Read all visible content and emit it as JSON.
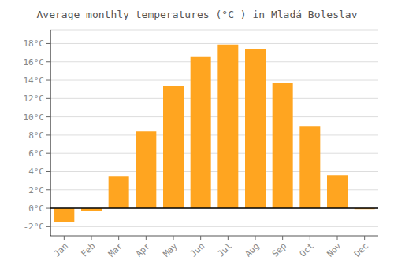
{
  "chart_data": {
    "type": "bar",
    "title": "Average monthly temperatures (°C ) in Mladá Boleslav",
    "categories": [
      "Jan",
      "Feb",
      "Mar",
      "Apr",
      "May",
      "Jun",
      "Jul",
      "Aug",
      "Sep",
      "Oct",
      "Nov",
      "Dec"
    ],
    "values": [
      -1.5,
      -0.3,
      3.5,
      8.4,
      13.4,
      16.6,
      17.9,
      17.4,
      13.7,
      9.0,
      3.6,
      -0.1
    ],
    "color": "#FFA520",
    "ylim": [
      -3,
      19.5
    ],
    "yticks": [
      {
        "value": -2,
        "label": "-2°C"
      },
      {
        "value": 0,
        "label": "0°C"
      },
      {
        "value": 2,
        "label": "2°C"
      },
      {
        "value": 4,
        "label": "4°C"
      },
      {
        "value": 6,
        "label": "6°C"
      },
      {
        "value": 8,
        "label": "8°C"
      },
      {
        "value": 10,
        "label": "10°C"
      },
      {
        "value": 12,
        "label": "12°C"
      },
      {
        "value": 14,
        "label": "14°C"
      },
      {
        "value": 16,
        "label": "16°C"
      },
      {
        "value": 18,
        "label": "18°C"
      }
    ],
    "grid": true
  }
}
